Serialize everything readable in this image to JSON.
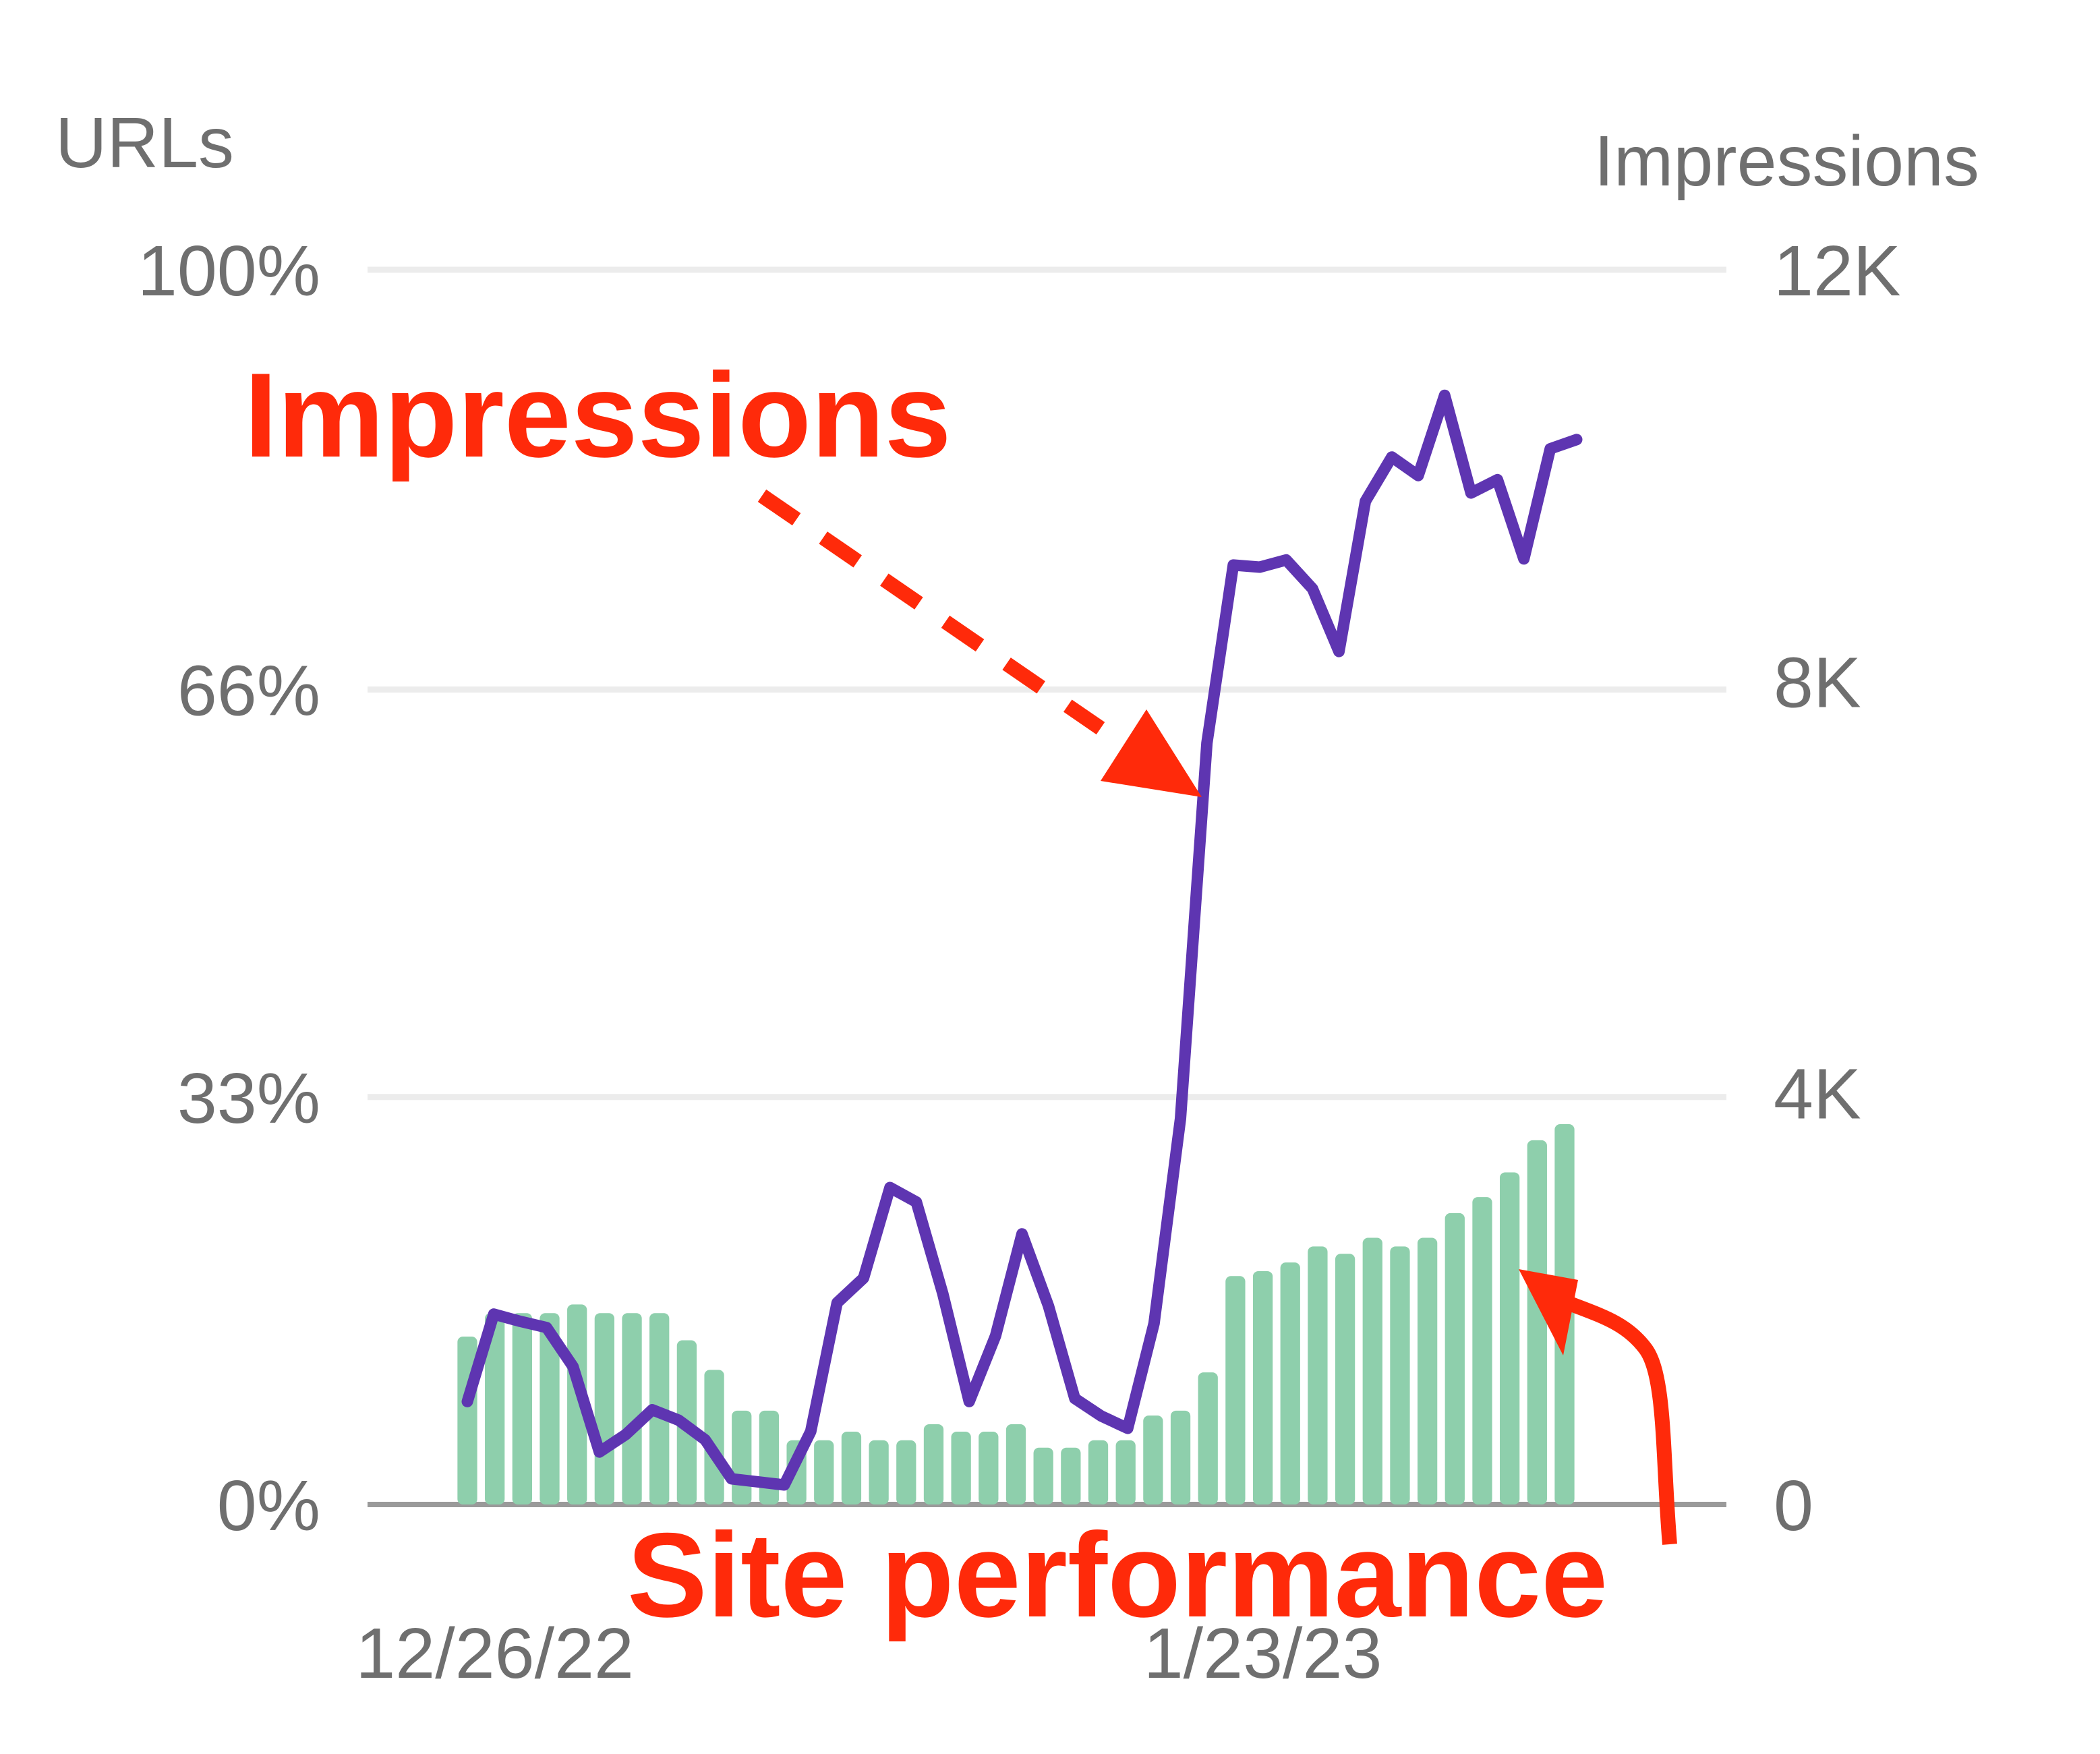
{
  "chart_data": {
    "type": "bar+line",
    "title": "",
    "left_axis": {
      "label": "URLs",
      "ticks": [
        "0%",
        "33%",
        "66%",
        "100%"
      ],
      "tick_values": [
        0,
        33,
        66,
        100
      ],
      "range": [
        0,
        100
      ]
    },
    "right_axis": {
      "label": "Impressions",
      "ticks": [
        "0",
        "4K",
        "8K",
        "12K"
      ],
      "tick_values": [
        0,
        4000,
        8000,
        12000
      ],
      "range": [
        0,
        12000
      ]
    },
    "x_ticks": [
      {
        "label": "12/26/22",
        "index": 1
      },
      {
        "label": "1/23/23",
        "index": 29
      }
    ],
    "grid": true,
    "series": [
      {
        "name": "Site performance",
        "type": "bar",
        "axis": "left",
        "color": "#8ecfac",
        "values": [
          13.6,
          15.5,
          15.5,
          15.5,
          16.2,
          15.5,
          15.5,
          15.5,
          13.3,
          10.9,
          7.6,
          7.6,
          5.2,
          5.2,
          5.9,
          5.2,
          5.2,
          6.5,
          5.9,
          5.9,
          6.5,
          4.6,
          4.6,
          5.2,
          5.2,
          7.2,
          7.6,
          10.7,
          18.5,
          18.9,
          19.6,
          20.9,
          20.3,
          21.6,
          20.9,
          21.6,
          23.6,
          24.9,
          26.9,
          29.5,
          30.8
        ]
      },
      {
        "name": "Impressions",
        "type": "line",
        "axis": "right",
        "color": "#5e35b1",
        "values": [
          1000,
          1850,
          1780,
          1720,
          1340,
          510,
          680,
          920,
          820,
          630,
          250,
          220,
          190,
          710,
          1960,
          2200,
          3080,
          2940,
          2050,
          1000,
          1640,
          2630,
          1930,
          1030,
          860,
          740,
          1760,
          3750,
          7400,
          9130,
          9110,
          9180,
          8900,
          8290,
          9750,
          10180,
          10000,
          10780,
          9830,
          9960,
          9190,
          10260,
          10350
        ]
      }
    ],
    "annotations": [
      {
        "text": "Impressions",
        "color": "#ff2a0a"
      },
      {
        "text": "Site performance",
        "color": "#ff2a0a"
      }
    ]
  }
}
